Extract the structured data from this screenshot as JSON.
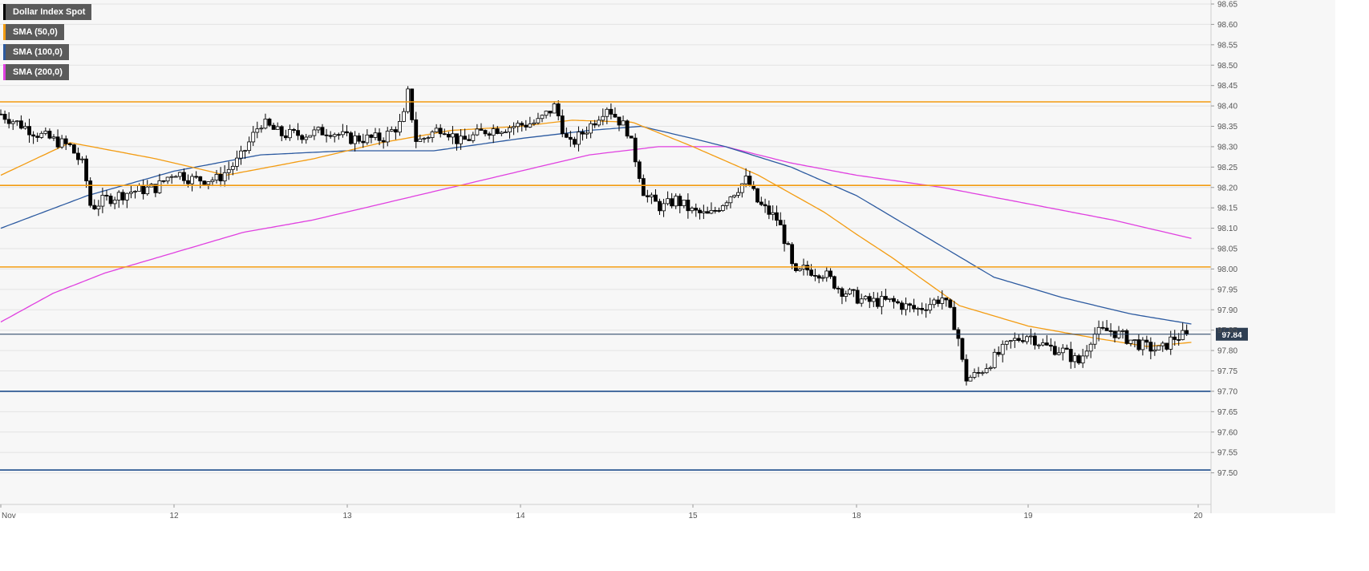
{
  "chart_data": {
    "type": "candlestick",
    "title": "Dollar Index Spot",
    "ylim": [
      97.45,
      98.65
    ],
    "y_ticks": [
      "98.65",
      "98.60",
      "98.55",
      "98.50",
      "98.45",
      "98.40",
      "98.35",
      "98.30",
      "98.25",
      "98.20",
      "98.15",
      "98.10",
      "98.05",
      "98.00",
      "97.95",
      "97.90",
      "97.85",
      "97.80",
      "97.75",
      "97.70",
      "97.65",
      "97.60",
      "97.55",
      "97.50"
    ],
    "x_ticks": [
      {
        "label": "Nov",
        "t": 0
      },
      {
        "label": "12",
        "t": 1
      },
      {
        "label": "13",
        "t": 2
      },
      {
        "label": "14",
        "t": 3
      },
      {
        "label": "15",
        "t": 4
      },
      {
        "label": "18",
        "t": 5
      },
      {
        "label": "19",
        "t": 6
      },
      {
        "label": "20",
        "t": 7
      }
    ],
    "last_price": 97.84,
    "last_price_label": "97.84",
    "horizontal_levels": [
      {
        "value": 98.41,
        "color": "#f39c12"
      },
      {
        "value": 98.205,
        "color": "#f39c12"
      },
      {
        "value": 98.005,
        "color": "#f39c12"
      },
      {
        "value": 97.7,
        "color": "#1f4e8c"
      },
      {
        "value": 97.507,
        "color": "#1f4e8c"
      }
    ],
    "legend": [
      {
        "label": "Dollar Index Spot",
        "color": "#000000"
      },
      {
        "label": "SMA (50,0)",
        "color": "#f39c12"
      },
      {
        "label": "SMA (100,0)",
        "color": "#2c5aa0"
      },
      {
        "label": "SMA (200,0)",
        "color": "#e040e0"
      }
    ],
    "price_anchors": [
      [
        0.0,
        98.38
      ],
      [
        0.22,
        98.33
      ],
      [
        0.4,
        98.3
      ],
      [
        0.48,
        98.25
      ],
      [
        0.52,
        98.15
      ],
      [
        0.6,
        98.17
      ],
      [
        0.75,
        98.19
      ],
      [
        0.9,
        98.2
      ],
      [
        1.0,
        98.24
      ],
      [
        1.1,
        98.22
      ],
      [
        1.25,
        98.22
      ],
      [
        1.38,
        98.27
      ],
      [
        1.5,
        98.36
      ],
      [
        1.62,
        98.33
      ],
      [
        1.75,
        98.33
      ],
      [
        1.9,
        98.34
      ],
      [
        2.0,
        98.32
      ],
      [
        2.2,
        98.32
      ],
      [
        2.32,
        98.36
      ],
      [
        2.35,
        98.43
      ],
      [
        2.4,
        98.31
      ],
      [
        2.55,
        98.35
      ],
      [
        2.65,
        98.31
      ],
      [
        2.8,
        98.34
      ],
      [
        2.95,
        98.35
      ],
      [
        3.1,
        98.36
      ],
      [
        3.2,
        98.4
      ],
      [
        3.28,
        98.3
      ],
      [
        3.4,
        98.35
      ],
      [
        3.5,
        98.4
      ],
      [
        3.62,
        98.34
      ],
      [
        3.68,
        98.25
      ],
      [
        3.72,
        98.18
      ],
      [
        3.82,
        98.15
      ],
      [
        3.9,
        98.17
      ],
      [
        4.0,
        98.14
      ],
      [
        4.1,
        98.13
      ],
      [
        4.2,
        98.17
      ],
      [
        4.33,
        98.22
      ],
      [
        4.4,
        98.16
      ],
      [
        4.52,
        98.12
      ],
      [
        4.58,
        98.05
      ],
      [
        4.62,
        97.98
      ],
      [
        4.68,
        98.0
      ],
      [
        4.8,
        97.99
      ],
      [
        4.9,
        97.95
      ],
      [
        5.05,
        97.92
      ],
      [
        5.2,
        97.92
      ],
      [
        5.35,
        97.9
      ],
      [
        5.5,
        97.93
      ],
      [
        5.56,
        97.88
      ],
      [
        5.6,
        97.82
      ],
      [
        5.63,
        97.73
      ],
      [
        5.7,
        97.74
      ],
      [
        5.8,
        97.78
      ],
      [
        5.9,
        97.82
      ],
      [
        6.0,
        97.84
      ],
      [
        6.1,
        97.81
      ],
      [
        6.2,
        97.8
      ],
      [
        6.3,
        97.77
      ],
      [
        6.38,
        97.84
      ],
      [
        6.48,
        97.85
      ],
      [
        6.58,
        97.83
      ],
      [
        6.68,
        97.81
      ],
      [
        6.78,
        97.8
      ],
      [
        6.85,
        97.83
      ],
      [
        6.94,
        97.84
      ]
    ],
    "sma_50": [
      [
        0.0,
        98.23
      ],
      [
        0.4,
        98.31
      ],
      [
        0.9,
        98.27
      ],
      [
        1.3,
        98.23
      ],
      [
        1.8,
        98.27
      ],
      [
        2.2,
        98.31
      ],
      [
        2.6,
        98.34
      ],
      [
        3.0,
        98.35
      ],
      [
        3.3,
        98.365
      ],
      [
        3.65,
        98.36
      ],
      [
        4.0,
        98.3
      ],
      [
        4.4,
        98.23
      ],
      [
        4.8,
        98.14
      ],
      [
        5.2,
        98.03
      ],
      [
        5.6,
        97.91
      ],
      [
        6.0,
        97.86
      ],
      [
        6.4,
        97.83
      ],
      [
        6.7,
        97.81
      ],
      [
        6.96,
        97.82
      ]
    ],
    "sma_100": [
      [
        0.0,
        98.1
      ],
      [
        0.5,
        98.18
      ],
      [
        1.0,
        98.24
      ],
      [
        1.5,
        98.28
      ],
      [
        2.0,
        98.29
      ],
      [
        2.5,
        98.29
      ],
      [
        3.0,
        98.32
      ],
      [
        3.4,
        98.34
      ],
      [
        3.7,
        98.35
      ],
      [
        4.2,
        98.3
      ],
      [
        4.6,
        98.25
      ],
      [
        5.0,
        98.18
      ],
      [
        5.4,
        98.08
      ],
      [
        5.8,
        97.98
      ],
      [
        6.2,
        97.93
      ],
      [
        6.6,
        97.89
      ],
      [
        6.96,
        97.865
      ]
    ],
    "sma_200": [
      [
        0.0,
        97.87
      ],
      [
        0.3,
        97.94
      ],
      [
        0.6,
        97.99
      ],
      [
        1.0,
        98.04
      ],
      [
        1.4,
        98.09
      ],
      [
        1.8,
        98.12
      ],
      [
        2.2,
        98.16
      ],
      [
        2.6,
        98.2
      ],
      [
        3.0,
        98.24
      ],
      [
        3.4,
        98.28
      ],
      [
        3.8,
        98.3
      ],
      [
        4.2,
        98.3
      ],
      [
        4.6,
        98.26
      ],
      [
        5.0,
        98.23
      ],
      [
        5.5,
        98.2
      ],
      [
        6.0,
        98.16
      ],
      [
        6.5,
        98.12
      ],
      [
        6.96,
        98.075
      ]
    ],
    "colors": {
      "background": "#f7f7f7",
      "grid": "#e3e3e3",
      "candle": "#000000",
      "last_price_line": "#1f3a5f",
      "last_price_badge": "#2e3e52"
    }
  }
}
